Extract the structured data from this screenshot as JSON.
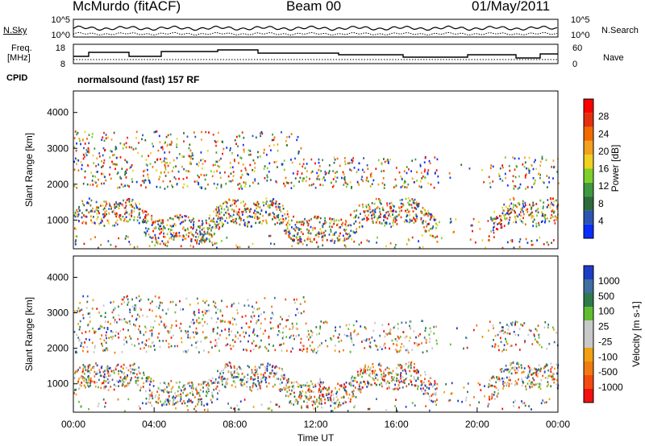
{
  "header": {
    "station": "McMurdo (fitACF)",
    "beam": "Beam 00",
    "date": "01/May/2011"
  },
  "side_labels": {
    "nsky": "N.Sky",
    "nsearch": "N.Search",
    "freq_line1": "Freq.",
    "freq_line2": "[MHz]",
    "nave": "Nave",
    "cpid": "CPID",
    "cpid_value": "normalsound (fast) 157 RF"
  },
  "mini_axes": {
    "noise_ticks_left": [
      "10^5",
      "10^0"
    ],
    "noise_ticks_right": [
      "10^5",
      "10^0"
    ],
    "freq_ticks": [
      "18",
      "8"
    ],
    "nave_ticks": [
      "60",
      "0"
    ]
  },
  "colors": {
    "power": [
      "#0a2dff",
      "#2c55b3",
      "#2f6a3a",
      "#3e9a3e",
      "#7fcf2a",
      "#f0d020",
      "#f2a020",
      "#f26a00",
      "#e53010",
      "#ff0000"
    ],
    "velocity": [
      "#f21010",
      "#f44a10",
      "#f07a10",
      "#f0a010",
      "#c8c8c8",
      "#c8c8c8",
      "#5fbe30",
      "#2f7a4a",
      "#3f6ea0",
      "#1e3cc8"
    ]
  },
  "chart_data": [
    {
      "type": "heatmap",
      "name": "power",
      "ylabel": "Slant Range [km]",
      "yticks": [
        "1000",
        "2000",
        "3000",
        "4000"
      ],
      "ylim": [
        200,
        4600
      ],
      "colorbar_label": "Power [dB]",
      "colorbar_ticks": [
        "4",
        "8",
        "12",
        "16",
        "20",
        "24",
        "28"
      ],
      "colorbar_range": [
        0,
        32
      ]
    },
    {
      "type": "heatmap",
      "name": "velocity",
      "ylabel": "Slant Range [km]",
      "yticks": [
        "1000",
        "2000",
        "3000",
        "4000"
      ],
      "ylim": [
        200,
        4600
      ],
      "colorbar_label": "Velocity [m s-1]",
      "colorbar_ticks": [
        "-1000",
        "-500",
        "-100",
        "-25",
        "25",
        "100",
        "500",
        "1000"
      ],
      "xlabel": "Time UT",
      "xticks": [
        "00:00",
        "04:00",
        "08:00",
        "12:00",
        "16:00",
        "20:00",
        "00:00"
      ],
      "xlim_hours": [
        0,
        24
      ]
    }
  ]
}
